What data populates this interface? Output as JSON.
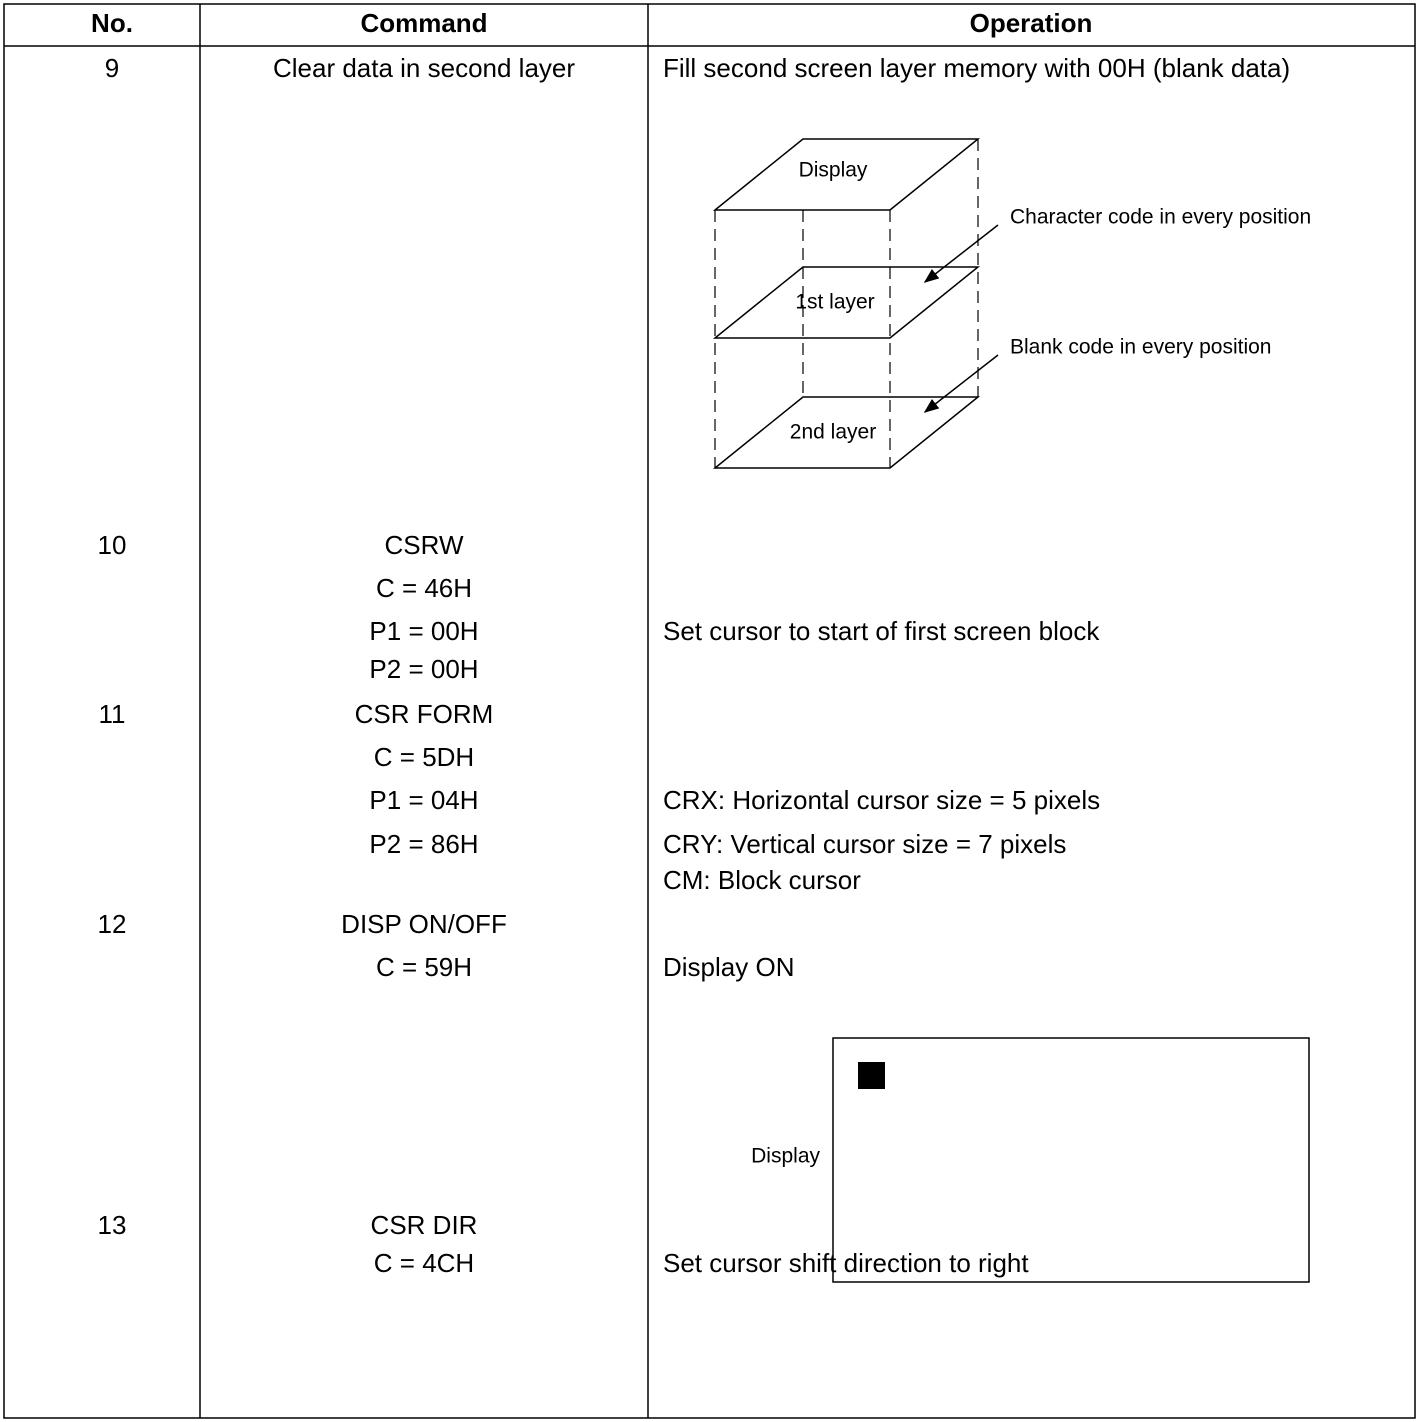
{
  "table": {
    "header": [
      "No.",
      "Command",
      "Operation"
    ],
    "rows": [
      {
        "no": "9",
        "command": [
          "Clear data in second layer"
        ],
        "operation": [
          "Fill second screen layer memory with 00H (blank data)"
        ],
        "diagram": {
          "top": "Display",
          "layer1": "1st layer",
          "layer2": "2nd layer",
          "note1": "Character code in every position",
          "note2": "Blank code in every position"
        }
      },
      {
        "no": "10",
        "command": [
          "CSRW",
          "C = 46H",
          "P1 = 00H",
          "P2 = 00H"
        ],
        "operation": [
          "Set cursor to start of first screen block"
        ]
      },
      {
        "no": "11",
        "command": [
          "CSR FORM",
          "C = 5DH",
          "P1 = 04H",
          "P2 = 86H"
        ],
        "operation": [
          "CRX: Horizontal cursor size = 5 pixels",
          "CRY: Vertical cursor size = 7 pixels",
          "CM: Block cursor"
        ]
      },
      {
        "no": "12",
        "command": [
          "DISP ON/OFF",
          "C = 59H"
        ],
        "operation": [
          "Display ON"
        ],
        "diagram": {
          "label": "Display"
        }
      },
      {
        "no": "13",
        "command": [
          "CSR DIR",
          "C = 4CH"
        ],
        "operation": [
          "Set cursor shift direction to right"
        ]
      }
    ]
  }
}
